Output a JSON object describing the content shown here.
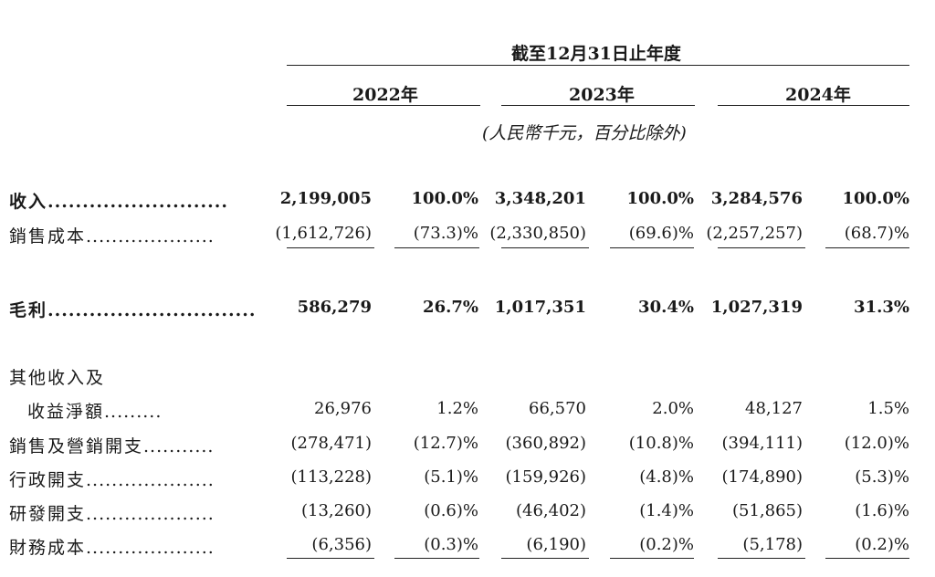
{
  "header": {
    "period": "截至12月31日止年度",
    "years": [
      "2022年",
      "2023年",
      "2024年"
    ],
    "unit_note": "(人民幣千元，百分比除外)"
  },
  "rows": {
    "revenue": {
      "label": "收入",
      "dots": "..........................",
      "v2022": "2,199,005",
      "p2022": "100.0%",
      "v2023": "3,348,201",
      "p2023": "100.0%",
      "v2024": "3,284,576",
      "p2024": "100.0%"
    },
    "cost_of_sales": {
      "label": "銷售成本",
      "dots": "....................",
      "v2022": "(1,612,726)",
      "p2022": "(73.3)%",
      "v2023": "(2,330,850)",
      "p2023": "(69.6)%",
      "v2024": "(2,257,257)",
      "p2024": "(68.7)%"
    },
    "gross_profit": {
      "label": "毛利",
      "dots": "..............................",
      "v2022": "586,279",
      "p2022": "26.7%",
      "v2023": "1,017,351",
      "p2023": "30.4%",
      "v2024": "1,027,319",
      "p2024": "31.3%"
    },
    "other_income": {
      "label_line1": "其他收入及",
      "label_line2": "收益淨額",
      "dots": ".........",
      "v2022": "26,976",
      "p2022": "1.2%",
      "v2023": "66,570",
      "p2023": "2.0%",
      "v2024": "48,127",
      "p2024": "1.5%"
    },
    "selling_expenses": {
      "label": "銷售及營銷開支",
      "dots": "...........",
      "v2022": "(278,471)",
      "p2022": "(12.7)%",
      "v2023": "(360,892)",
      "p2023": "(10.8)%",
      "v2024": "(394,111)",
      "p2024": "(12.0)%"
    },
    "admin_expenses": {
      "label": "行政開支",
      "dots": "....................",
      "v2022": "(113,228)",
      "p2022": "(5.1)%",
      "v2023": "(159,926)",
      "p2023": "(4.8)%",
      "v2024": "(174,890)",
      "p2024": "(5.3)%"
    },
    "rd_expenses": {
      "label": "研發開支",
      "dots": "....................",
      "v2022": "(13,260)",
      "p2022": "(0.6)%",
      "v2023": "(46,402)",
      "p2023": "(1.4)%",
      "v2024": "(51,865)",
      "p2024": "(1.6)%"
    },
    "finance_costs": {
      "label": "財務成本",
      "dots": "....................",
      "v2022": "(6,356)",
      "p2022": "(0.3)%",
      "v2023": "(6,190)",
      "p2023": "(0.2)%",
      "v2024": "(5,178)",
      "p2024": "(0.2)%"
    }
  }
}
